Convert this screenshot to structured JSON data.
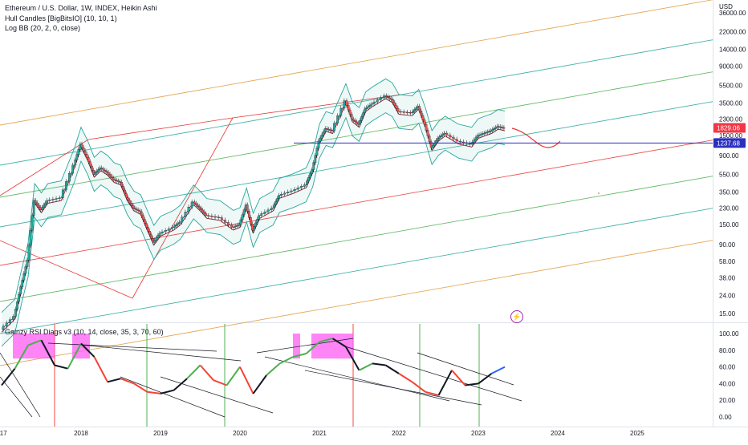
{
  "legend": {
    "title": "Ethereum / U.S. Dollar, 1W, INDEX, Heikin Ashi",
    "indicator1": "Hull Candles [BigBitsIO] (10, 10, 1)",
    "indicator2": "Log BB (20, 2, 0, close)"
  },
  "rsi_panel": {
    "title": "Gainzy RSI Diags v3 (10, 14, close, 35, 3, 70, 60)"
  },
  "price_axis": {
    "currency": "USD",
    "labels": [
      "36000.00",
      "22000.00",
      "14000.00",
      "9000.00",
      "5500.00",
      "3500.00",
      "2300.00",
      "1500.00",
      "900.00",
      "550.00",
      "350.00",
      "230.00",
      "150.00",
      "90.00",
      "58.00",
      "38.00",
      "24.00",
      "15.00"
    ],
    "current_price": "1829.06",
    "hline_price": "1237.68"
  },
  "rsi_axis": {
    "labels": [
      "100.00",
      "80.00",
      "60.00",
      "40.00",
      "20.00",
      "0.00"
    ]
  },
  "time_axis": {
    "labels": [
      "017",
      "2018",
      "2019",
      "2020",
      "2021",
      "2022",
      "2023",
      "2024",
      "2025"
    ]
  },
  "colors": {
    "bull": "#26a69a",
    "bear": "#ef5350",
    "current_tag": "#f23645",
    "hline": "#2b2fbe",
    "bb": "#26a69a",
    "basis": "#8b1d2c",
    "rsi_green": "#4caf50",
    "rsi_red": "#f44336",
    "rsi_blue": "#2962ff",
    "rsi_black": "#131722",
    "overbought_fill": "#ff5cf4"
  },
  "icons": {
    "lightning": "lightning-icon"
  },
  "chart_data": [
    {
      "type": "line",
      "title": "Ethereum / U.S. Dollar, 1W, INDEX, Heikin Ashi",
      "ylabel": "USD",
      "yscale": "log",
      "ylim": [
        12,
        50000
      ],
      "xlim": [
        "2017-01",
        "2025-12"
      ],
      "series": [
        {
          "name": "Ethereum / U.S. Dollar",
          "x": [
            "2017-01",
            "2017-03",
            "2017-04",
            "2017-05",
            "2017-06",
            "2017-07",
            "2017-08",
            "2017-10",
            "2017-12",
            "2018-01",
            "2018-02",
            "2018-03",
            "2018-04",
            "2018-05",
            "2018-06",
            "2018-07",
            "2018-08",
            "2018-09",
            "2018-10",
            "2018-11",
            "2018-12",
            "2019-01",
            "2019-03",
            "2019-04",
            "2019-06",
            "2019-07",
            "2019-08",
            "2019-10",
            "2019-12",
            "2020-01",
            "2020-02",
            "2020-03",
            "2020-04",
            "2020-06",
            "2020-07",
            "2020-09",
            "2020-11",
            "2020-12",
            "2021-01",
            "2021-02",
            "2021-03",
            "2021-05",
            "2021-06",
            "2021-07",
            "2021-08",
            "2021-09",
            "2021-11",
            "2021-12",
            "2022-01",
            "2022-03",
            "2022-04",
            "2022-05",
            "2022-06",
            "2022-07",
            "2022-08",
            "2022-10",
            "2022-12",
            "2023-01",
            "2023-02",
            "2023-03",
            "2023-04",
            "2023-05"
          ],
          "values": [
            10,
            14,
            30,
            60,
            280,
            220,
            280,
            300,
            700,
            1200,
            850,
            550,
            650,
            580,
            480,
            450,
            300,
            230,
            210,
            140,
            95,
            120,
            140,
            160,
            270,
            230,
            190,
            180,
            140,
            150,
            250,
            130,
            190,
            230,
            320,
            360,
            420,
            620,
            1300,
            1800,
            1700,
            3700,
            2300,
            2000,
            3000,
            3400,
            4200,
            3800,
            2800,
            2700,
            3200,
            2000,
            1100,
            1400,
            1600,
            1300,
            1200,
            1500,
            1600,
            1700,
            1900,
            1829
          ]
        }
      ],
      "horizontal_line": 1237.68
    },
    {
      "type": "line",
      "title": "Gainzy RSI Diags v3 (10, 14, close, 35, 3, 70, 60)",
      "ylim": [
        0,
        100
      ],
      "series": [
        {
          "name": "Gainzy RSI Diags v3",
          "x": [
            "2017-01",
            "2017-03",
            "2017-05",
            "2017-07",
            "2017-09",
            "2017-11",
            "2018-01",
            "2018-03",
            "2018-05",
            "2018-07",
            "2018-09",
            "2018-11",
            "2019-01",
            "2019-03",
            "2019-05",
            "2019-07",
            "2019-09",
            "2019-11",
            "2020-01",
            "2020-03",
            "2020-05",
            "2020-07",
            "2020-09",
            "2020-11",
            "2021-01",
            "2021-03",
            "2021-05",
            "2021-07",
            "2021-09",
            "2021-11",
            "2022-01",
            "2022-03",
            "2022-05",
            "2022-07",
            "2022-09",
            "2022-11",
            "2023-01",
            "2023-03",
            "2023-05"
          ],
          "values": [
            38,
            58,
            86,
            92,
            62,
            58,
            88,
            72,
            42,
            46,
            40,
            30,
            28,
            32,
            46,
            62,
            44,
            38,
            60,
            28,
            50,
            64,
            72,
            76,
            90,
            94,
            84,
            56,
            64,
            62,
            52,
            42,
            30,
            26,
            56,
            38,
            40,
            52,
            60
          ]
        }
      ]
    }
  ]
}
